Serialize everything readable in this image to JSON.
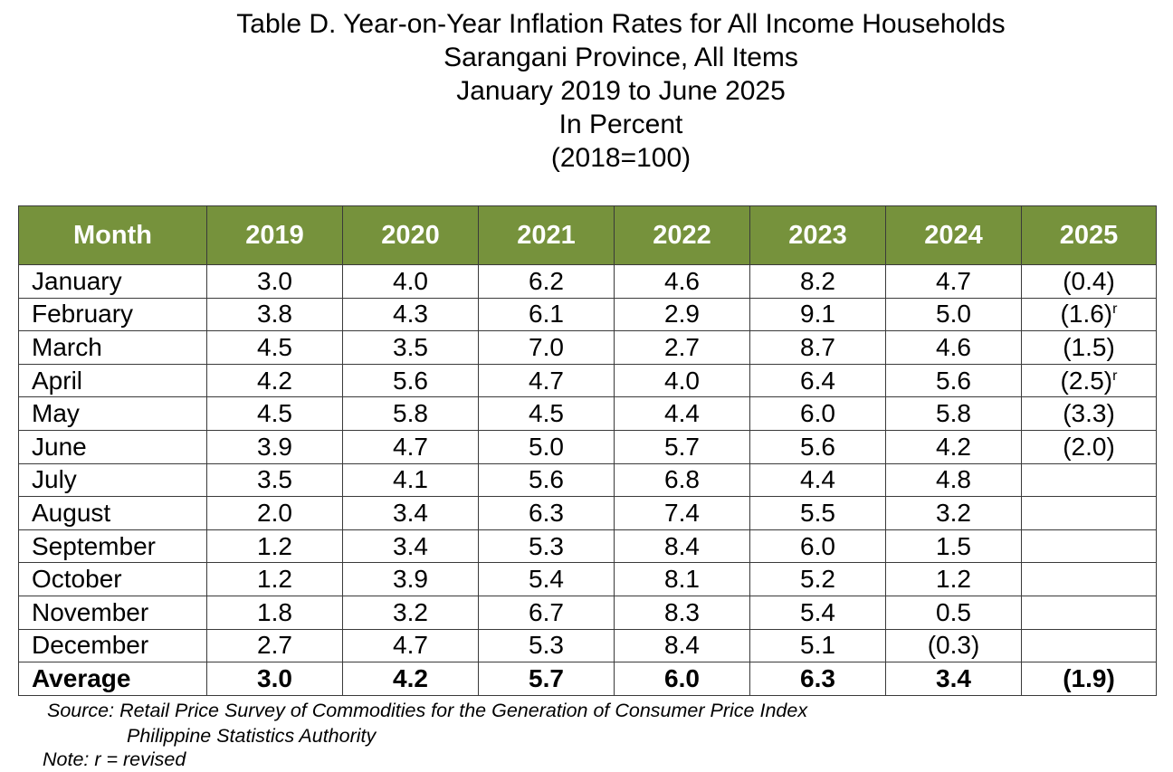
{
  "title": {
    "line1": "Table D. Year-on-Year Inflation Rates for All Income Households",
    "line2": "Sarangani Province, All Items",
    "line3": "January 2019 to June 2025",
    "line4": "In Percent",
    "line5": "(2018=100)"
  },
  "table": {
    "headers": [
      "Month",
      "2019",
      "2020",
      "2021",
      "2022",
      "2023",
      "2024",
      "2025"
    ],
    "header_color": "#76923c",
    "rows": [
      {
        "month": "January",
        "values": [
          "3.0",
          "4.0",
          "6.2",
          "4.6",
          "8.2",
          "4.7",
          "(0.4)"
        ],
        "mark": ""
      },
      {
        "month": "February",
        "values": [
          "3.8",
          "4.3",
          "6.1",
          "2.9",
          "9.1",
          "5.0",
          "(1.6)"
        ],
        "mark": "r"
      },
      {
        "month": "March",
        "values": [
          "4.5",
          "3.5",
          "7.0",
          "2.7",
          "8.7",
          "4.6",
          "(1.5)"
        ],
        "mark": ""
      },
      {
        "month": "April",
        "values": [
          "4.2",
          "5.6",
          "4.7",
          "4.0",
          "6.4",
          "5.6",
          "(2.5)"
        ],
        "mark": "r"
      },
      {
        "month": "May",
        "values": [
          "4.5",
          "5.8",
          "4.5",
          "4.4",
          "6.0",
          "5.8",
          "(3.3)"
        ],
        "mark": ""
      },
      {
        "month": "June",
        "values": [
          "3.9",
          "4.7",
          "5.0",
          "5.7",
          "5.6",
          "4.2",
          "(2.0)"
        ],
        "mark": ""
      },
      {
        "month": "July",
        "values": [
          "3.5",
          "4.1",
          "5.6",
          "6.8",
          "4.4",
          "4.8",
          ""
        ],
        "mark": ""
      },
      {
        "month": "August",
        "values": [
          "2.0",
          "3.4",
          "6.3",
          "7.4",
          "5.5",
          "3.2",
          ""
        ],
        "mark": ""
      },
      {
        "month": "September",
        "values": [
          "1.2",
          "3.4",
          "5.3",
          "8.4",
          "6.0",
          "1.5",
          ""
        ],
        "mark": ""
      },
      {
        "month": "October",
        "values": [
          "1.2",
          "3.9",
          "5.4",
          "8.1",
          "5.2",
          "1.2",
          ""
        ],
        "mark": ""
      },
      {
        "month": "November",
        "values": [
          "1.8",
          "3.2",
          "6.7",
          "8.3",
          "5.4",
          "0.5",
          ""
        ],
        "mark": ""
      },
      {
        "month": "December",
        "values": [
          "2.7",
          "4.7",
          "5.3",
          "8.4",
          "5.1",
          "(0.3)",
          ""
        ],
        "mark": ""
      }
    ],
    "average": {
      "label": "Average",
      "values": [
        "3.0",
        "4.2",
        "5.7",
        "6.0",
        "6.3",
        "3.4",
        "(1.9)"
      ]
    }
  },
  "footer": {
    "source_line1": "Source: Retail Price Survey of Commodities for the Generation of Consumer Price Index",
    "source_line2": "Philippine Statistics Authority",
    "note": "Note:  r = revised"
  }
}
